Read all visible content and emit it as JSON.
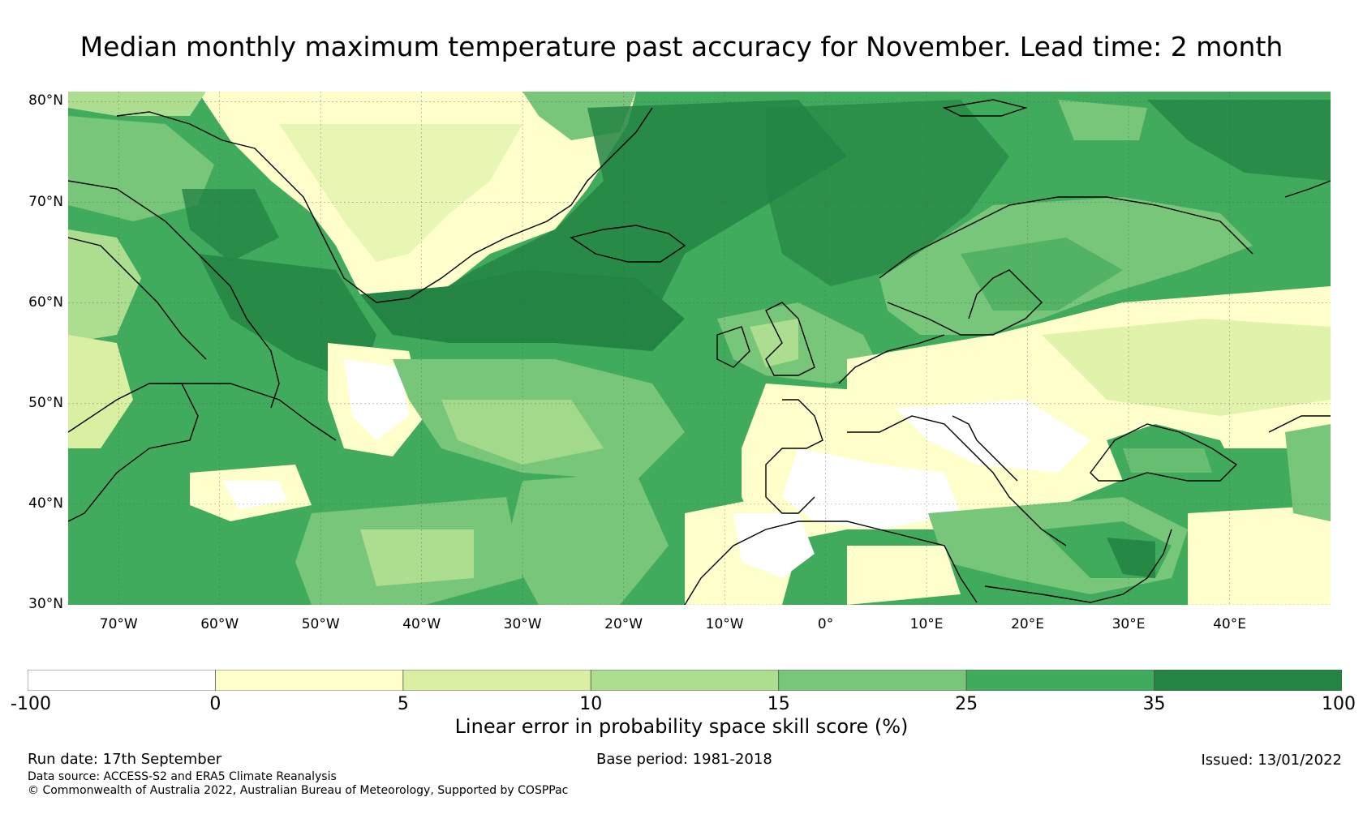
{
  "title": "Median monthly maximum temperature past accuracy for November. Lead time: 2 month",
  "map": {
    "lon_range": [
      -75,
      50
    ],
    "lat_range": [
      30,
      81
    ],
    "lat_labels": [
      "80°N",
      "70°N",
      "60°N",
      "50°N",
      "40°N",
      "30°N"
    ],
    "lat_values": [
      80,
      70,
      60,
      50,
      40,
      30
    ],
    "lon_labels": [
      "70°W",
      "60°W",
      "50°W",
      "40°W",
      "30°W",
      "20°W",
      "10°W",
      "0°",
      "10°E",
      "20°E",
      "30°E",
      "40°E"
    ],
    "lon_values": [
      -70,
      -60,
      -50,
      -40,
      -30,
      -20,
      -10,
      0,
      10,
      20,
      30,
      40
    ]
  },
  "colorbar": {
    "ticks": [
      "-100",
      "0",
      "5",
      "10",
      "15",
      "25",
      "35",
      "100"
    ],
    "colors": [
      "#ffffff",
      "#ffffcc",
      "#d9f0a3",
      "#addd8e",
      "#78c679",
      "#41ab5d",
      "#238443"
    ],
    "label": "Linear error in probability space skill score (%)"
  },
  "footer": {
    "run_date": "Run date: 17th September",
    "base_period": "Base period: 1981-2018",
    "issued": "Issued: 13/01/2022",
    "data_source": "Data source: ACCESS-S2 and ERA5 Climate Reanalysis",
    "copyright": "© Commonwealth of Australia 2022, Australian Bureau of Meteorology, Supported by COSPPac"
  }
}
